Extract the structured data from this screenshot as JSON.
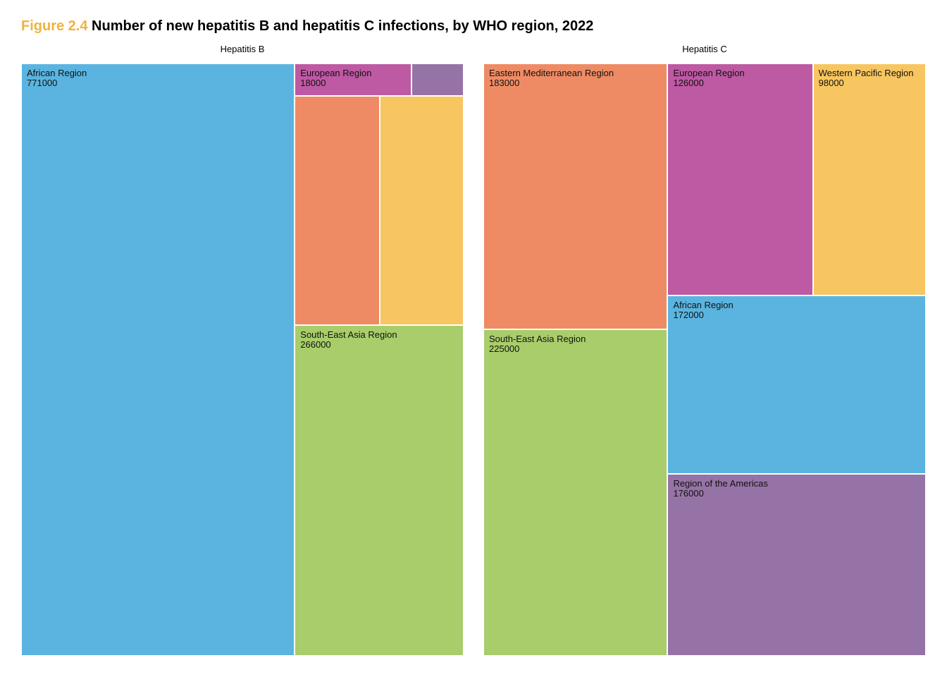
{
  "figure": {
    "number": "Figure 2.4",
    "title": "Number of new hepatitis B and hepatitis C infections, by WHO region, 2022"
  },
  "colors": {
    "African Region": "#5AB4DF",
    "European Region": "#BE59A3",
    "Region of the Americas": "#9673A6",
    "Eastern Mediterranean Region": "#EF8B64",
    "Western Pacific Region": "#F8C660",
    "South-East Asia Region": "#A8CD6A"
  },
  "chart_data": [
    {
      "type": "treemap",
      "title": "Hepatitis B",
      "tiles": [
        {
          "region": "African Region",
          "value": 771000,
          "label": "African Region",
          "value_label": "771000"
        },
        {
          "region": "European Region",
          "value": 18000,
          "label": "European Region",
          "value_label": "18000"
        },
        {
          "region": "Region of the Americas",
          "value": 8000,
          "label": "",
          "value_label": ""
        },
        {
          "region": "Eastern Mediterranean Region",
          "value": 93000,
          "label": "",
          "value_label": ""
        },
        {
          "region": "Western Pacific Region",
          "value": 91000,
          "label": "",
          "value_label": ""
        },
        {
          "region": "South-East Asia Region",
          "value": 266000,
          "label": "South-East Asia Region",
          "value_label": "266000"
        }
      ]
    },
    {
      "type": "treemap",
      "title": "Hepatitis C",
      "tiles": [
        {
          "region": "Eastern Mediterranean Region",
          "value": 183000,
          "label": "Eastern Mediterranean Region",
          "value_label": "183000"
        },
        {
          "region": "European Region",
          "value": 126000,
          "label": "European Region",
          "value_label": "126000"
        },
        {
          "region": "Western Pacific Region",
          "value": 98000,
          "label": "Western Pacific Region",
          "value_label": "98000"
        },
        {
          "region": "South-East Asia Region",
          "value": 225000,
          "label": "South-East Asia Region",
          "value_label": "225000"
        },
        {
          "region": "African Region",
          "value": 172000,
          "label": "African Region",
          "value_label": "172000"
        },
        {
          "region": "Region of the Americas",
          "value": 176000,
          "label": "Region of the Americas",
          "value_label": "176000"
        }
      ]
    }
  ]
}
